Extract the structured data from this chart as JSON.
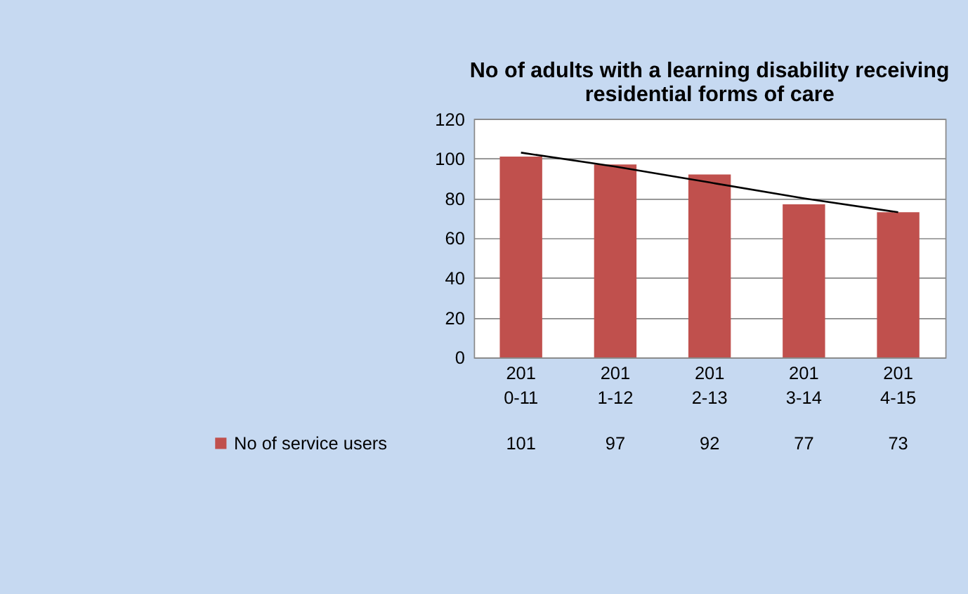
{
  "chart_data": {
    "type": "bar",
    "title": [
      "No of adults with a learning disability receiving",
      "residential forms of care"
    ],
    "categories": [
      "2010-11",
      "2011-12",
      "2012-13",
      "2013-14",
      "2014-15"
    ],
    "series": [
      {
        "name": "No of service users",
        "color": "#c0504d",
        "values": [
          101,
          97,
          92,
          77,
          73
        ],
        "value_labels": [
          "101",
          "97",
          "92",
          "77",
          "73"
        ]
      },
      {
        "type": "line",
        "color": "#000000",
        "values": [
          103,
          96,
          88,
          80,
          73
        ]
      }
    ],
    "ylim": [
      0,
      120
    ],
    "yticks": [
      0,
      20,
      40,
      60,
      80,
      100,
      120
    ],
    "grid": "y",
    "legend": "bottom left"
  }
}
